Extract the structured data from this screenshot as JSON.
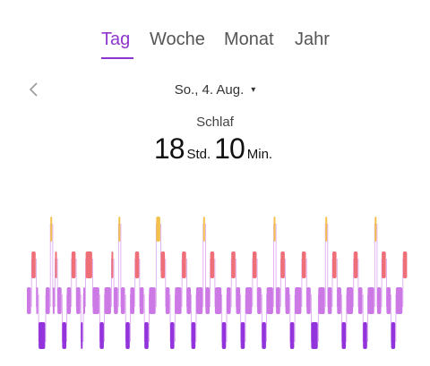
{
  "tabs": {
    "day": "Tag",
    "week": "Woche",
    "month": "Monat",
    "year": "Jahr"
  },
  "active_tab": "day",
  "date_selector": {
    "label": "So., 4. Aug.",
    "caret": "▾"
  },
  "metric": {
    "label": "Schlaf",
    "hours": "18",
    "hours_unit": "Std.",
    "minutes": "10",
    "minutes_unit": "Min."
  },
  "colors": {
    "accent": "#8e35cf",
    "awake": "#f3c14b",
    "rem": "#ee6f78",
    "light": "#cc79e6",
    "deep": "#9333dc"
  },
  "chart_data": {
    "type": "sleep-stage-timeline",
    "levels": [
      "awake",
      "rem",
      "light",
      "deep"
    ],
    "segments": [
      {
        "t": 0,
        "stage": "light"
      },
      {
        "t": 2,
        "stage": "rem"
      },
      {
        "t": 4,
        "stage": "light"
      },
      {
        "t": 5,
        "stage": "deep"
      },
      {
        "t": 8,
        "stage": "light"
      },
      {
        "t": 10,
        "stage": "awake"
      },
      {
        "t": 11,
        "stage": "light"
      },
      {
        "t": 12,
        "stage": "rem"
      },
      {
        "t": 13,
        "stage": "light"
      },
      {
        "t": 15,
        "stage": "deep"
      },
      {
        "t": 17,
        "stage": "light"
      },
      {
        "t": 19,
        "stage": "rem"
      },
      {
        "t": 21,
        "stage": "light"
      },
      {
        "t": 23,
        "stage": "deep"
      },
      {
        "t": 24,
        "stage": "light"
      },
      {
        "t": 25,
        "stage": "rem"
      },
      {
        "t": 28,
        "stage": "light"
      },
      {
        "t": 31,
        "stage": "deep"
      },
      {
        "t": 33,
        "stage": "light"
      },
      {
        "t": 36,
        "stage": "rem"
      },
      {
        "t": 37,
        "stage": "light"
      },
      {
        "t": 39,
        "stage": "awake"
      },
      {
        "t": 40,
        "stage": "light"
      },
      {
        "t": 42,
        "stage": "deep"
      },
      {
        "t": 44,
        "stage": "light"
      },
      {
        "t": 46,
        "stage": "rem"
      },
      {
        "t": 48,
        "stage": "light"
      },
      {
        "t": 50,
        "stage": "deep"
      },
      {
        "t": 52,
        "stage": "light"
      },
      {
        "t": 55,
        "stage": "awake"
      },
      {
        "t": 57,
        "stage": "rem"
      },
      {
        "t": 59,
        "stage": "light"
      },
      {
        "t": 61,
        "stage": "deep"
      },
      {
        "t": 63,
        "stage": "light"
      },
      {
        "t": 66,
        "stage": "rem"
      },
      {
        "t": 68,
        "stage": "light"
      },
      {
        "t": 70,
        "stage": "deep"
      },
      {
        "t": 72,
        "stage": "light"
      },
      {
        "t": 75,
        "stage": "awake"
      },
      {
        "t": 76,
        "stage": "light"
      },
      {
        "t": 78,
        "stage": "rem"
      },
      {
        "t": 80,
        "stage": "light"
      },
      {
        "t": 83,
        "stage": "deep"
      },
      {
        "t": 85,
        "stage": "light"
      },
      {
        "t": 87,
        "stage": "rem"
      },
      {
        "t": 89,
        "stage": "light"
      },
      {
        "t": 91,
        "stage": "deep"
      },
      {
        "t": 93,
        "stage": "light"
      },
      {
        "t": 96,
        "stage": "rem"
      },
      {
        "t": 98,
        "stage": "light"
      },
      {
        "t": 100,
        "stage": "deep"
      },
      {
        "t": 102,
        "stage": "light"
      },
      {
        "t": 105,
        "stage": "awake"
      },
      {
        "t": 106,
        "stage": "light"
      },
      {
        "t": 108,
        "stage": "rem"
      },
      {
        "t": 110,
        "stage": "light"
      },
      {
        "t": 112,
        "stage": "deep"
      },
      {
        "t": 114,
        "stage": "light"
      },
      {
        "t": 117,
        "stage": "rem"
      },
      {
        "t": 119,
        "stage": "light"
      },
      {
        "t": 121,
        "stage": "deep"
      },
      {
        "t": 124,
        "stage": "light"
      },
      {
        "t": 127,
        "stage": "awake"
      },
      {
        "t": 128,
        "stage": "light"
      },
      {
        "t": 130,
        "stage": "rem"
      },
      {
        "t": 132,
        "stage": "light"
      },
      {
        "t": 134,
        "stage": "deep"
      },
      {
        "t": 136,
        "stage": "light"
      },
      {
        "t": 139,
        "stage": "rem"
      },
      {
        "t": 141,
        "stage": "light"
      },
      {
        "t": 143,
        "stage": "deep"
      },
      {
        "t": 145,
        "stage": "light"
      },
      {
        "t": 148,
        "stage": "awake"
      },
      {
        "t": 149,
        "stage": "light"
      },
      {
        "t": 151,
        "stage": "rem"
      },
      {
        "t": 153,
        "stage": "light"
      },
      {
        "t": 155,
        "stage": "deep"
      },
      {
        "t": 157,
        "stage": "light"
      },
      {
        "t": 160,
        "stage": "rem"
      }
    ],
    "end": 162
  }
}
